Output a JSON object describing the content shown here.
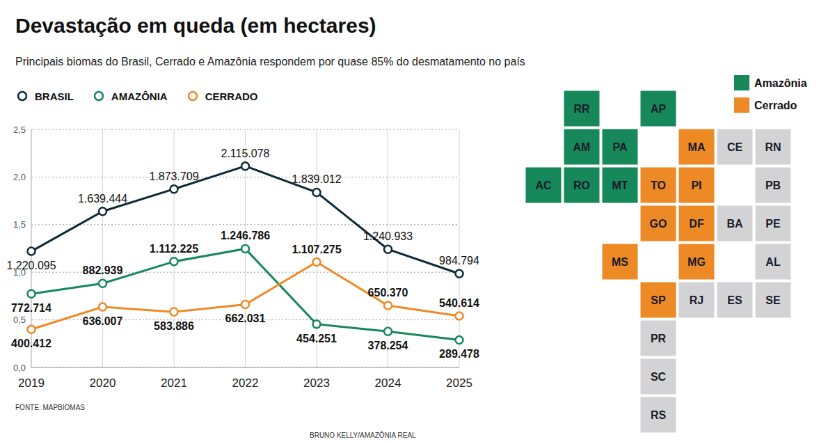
{
  "chart_data": {
    "type": "line",
    "title": "Devastação em queda (em hectares)",
    "subtitle": "Principais biomas do Brasil, Cerrado e Amazônia respondem por quase 85% do desmatamento no país",
    "categories": [
      "2019",
      "2020",
      "2021",
      "2022",
      "2023",
      "2024",
      "2025"
    ],
    "series": [
      {
        "name": "BRASIL",
        "color": "#0d2b36",
        "marker": "circle",
        "line_style": "solid",
        "values": [
          1.220095,
          1.639444,
          1.873709,
          2.115078,
          1.839012,
          1.240933,
          0.984794
        ],
        "value_labels": [
          "1.220.095",
          "1.639.444",
          "1.873.709",
          "2.115.078",
          "1.839.012",
          "1.240.933",
          "984.794"
        ]
      },
      {
        "name": "AMAZÔNIA",
        "color": "#16885a",
        "marker": "circle",
        "line_style": "solid",
        "values": [
          0.772714,
          0.882939,
          1.112225,
          1.246786,
          0.454251,
          0.378254,
          0.289478
        ],
        "value_labels": [
          "772.714",
          "882.939",
          "1.112.225",
          "1.246.786",
          "454.251",
          "378.254",
          "289.478"
        ]
      },
      {
        "name": "CERRADO",
        "color": "#ee8a25",
        "marker": "circle",
        "line_style": "solid",
        "values": [
          0.400412,
          0.636007,
          0.583886,
          0.662031,
          1.107275,
          0.65037,
          0.540614
        ],
        "value_labels": [
          "400.412",
          "636.007",
          "583.886",
          "662.031",
          "1.107.275",
          "650.370",
          "540.614"
        ]
      }
    ],
    "ylim": [
      0,
      2.5
    ],
    "yticks": [
      {
        "value": 0,
        "label": "0,0"
      },
      {
        "value": 0.5,
        "label": "0,5"
      },
      {
        "value": 1,
        "label": "1,0"
      },
      {
        "value": 1.5,
        "label": "1,5"
      },
      {
        "value": 2,
        "label": "2,0"
      },
      {
        "value": 2.5,
        "label": "2,5"
      }
    ],
    "grid": true,
    "legend": "top left",
    "data_labels": true,
    "source": "FONTE: MAPBIOMAS",
    "credit": "BRUNO KELLY/AMAZÔNIA REAL"
  },
  "map": {
    "legend": [
      {
        "name": "Amazônia",
        "color": "#16885a"
      },
      {
        "name": "Cerrado",
        "color": "#ee8a25"
      }
    ],
    "other_color": "#d3d3d6",
    "states": [
      {
        "label": "RR",
        "biome": "Amazônia"
      },
      {
        "label": "AP",
        "biome": "Amazônia"
      },
      {
        "label": "AM",
        "biome": "Amazônia"
      },
      {
        "label": "PA",
        "biome": "Amazônia"
      },
      {
        "label": "MA",
        "biome": "Cerrado"
      },
      {
        "label": "CE",
        "biome": null
      },
      {
        "label": "RN",
        "biome": null
      },
      {
        "label": "AC",
        "biome": "Amazônia"
      },
      {
        "label": "RO",
        "biome": "Amazônia"
      },
      {
        "label": "MT",
        "biome": "Amazônia"
      },
      {
        "label": "TO",
        "biome": "Cerrado"
      },
      {
        "label": "PI",
        "biome": "Cerrado"
      },
      {
        "label": "PB",
        "biome": null
      },
      {
        "label": "GO",
        "biome": "Cerrado"
      },
      {
        "label": "DF",
        "biome": "Cerrado"
      },
      {
        "label": "BA",
        "biome": null
      },
      {
        "label": "PE",
        "biome": null
      },
      {
        "label": "MS",
        "biome": "Cerrado"
      },
      {
        "label": "MG",
        "biome": "Cerrado"
      },
      {
        "label": "AL",
        "biome": null
      },
      {
        "label": "SP",
        "biome": "Cerrado"
      },
      {
        "label": "RJ",
        "biome": null
      },
      {
        "label": "ES",
        "biome": null
      },
      {
        "label": "SE",
        "biome": null
      },
      {
        "label": "PR",
        "biome": null
      },
      {
        "label": "SC",
        "biome": null
      },
      {
        "label": "RS",
        "biome": null
      }
    ]
  }
}
